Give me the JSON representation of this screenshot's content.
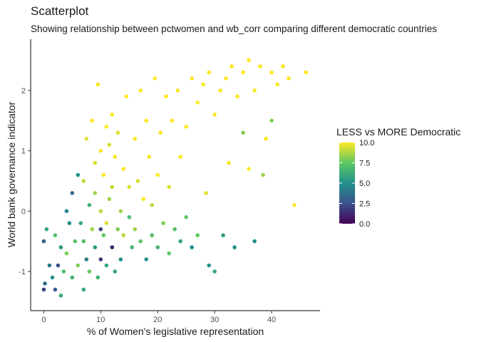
{
  "chart_data": {
    "type": "scatter",
    "title": "Scatterplot",
    "subtitle": "Showing relationship between pctwomen and wb_corr comparing different democratic countries",
    "xlabel": "% of Women's legislative representation",
    "ylabel": "World bank governance indicator",
    "xlim": [
      -2.3,
      48.5
    ],
    "ylim": [
      -1.65,
      2.85
    ],
    "x_ticks": [
      "0",
      "10",
      "20",
      "30",
      "40"
    ],
    "y_ticks": [
      "-1",
      "0",
      "1",
      "2"
    ],
    "x_tick_values": [
      0,
      10,
      20,
      30,
      40
    ],
    "y_tick_values": [
      -1,
      0,
      1,
      2
    ],
    "grid": false,
    "legend": {
      "title": "LESS vs MORE Democratic",
      "placement": "right",
      "ticks": [
        "0.0",
        "2.5",
        "5.0",
        "7.5",
        "10.0"
      ],
      "tick_values": [
        0,
        2.5,
        5,
        7.5,
        10
      ],
      "range": [
        0,
        10
      ],
      "colors": [
        "#440154",
        "#3B528B",
        "#21908C",
        "#5DC863",
        "#FDE725"
      ]
    },
    "points": [
      [
        0.0,
        -0.5,
        3.0
      ],
      [
        0.0,
        -1.3,
        2.0
      ],
      [
        0.2,
        -1.2,
        3.5
      ],
      [
        0.5,
        -0.3,
        6.0
      ],
      [
        1.0,
        -0.9,
        4.0
      ],
      [
        1.5,
        -1.1,
        5.0
      ],
      [
        2.0,
        -0.4,
        7.0
      ],
      [
        2.0,
        -1.3,
        3.0
      ],
      [
        2.5,
        -0.9,
        2.5
      ],
      [
        3.0,
        -1.4,
        6.0
      ],
      [
        3.0,
        -0.6,
        5.5
      ],
      [
        3.5,
        -1.0,
        7.0
      ],
      [
        4.0,
        0.0,
        4.5
      ],
      [
        4.0,
        -0.7,
        8.0
      ],
      [
        4.5,
        -0.2,
        5.0
      ],
      [
        5.0,
        -1.1,
        6.5
      ],
      [
        5.0,
        0.3,
        3.5
      ],
      [
        5.5,
        -0.5,
        7.5
      ],
      [
        6.0,
        -0.9,
        8.0
      ],
      [
        6.0,
        0.6,
        5.0
      ],
      [
        6.5,
        -0.2,
        6.0
      ],
      [
        7.0,
        -1.3,
        6.0
      ],
      [
        7.0,
        -0.5,
        7.0
      ],
      [
        7.0,
        0.5,
        9.0
      ],
      [
        7.5,
        1.2,
        9.5
      ],
      [
        7.5,
        -0.8,
        4.5
      ],
      [
        8.0,
        0.1,
        6.5
      ],
      [
        8.0,
        -1.0,
        7.5
      ],
      [
        8.5,
        1.5,
        10.0
      ],
      [
        8.5,
        -0.3,
        8.5
      ],
      [
        9.0,
        0.8,
        9.5
      ],
      [
        9.0,
        -0.6,
        5.5
      ],
      [
        9.0,
        0.3,
        8.5
      ],
      [
        9.5,
        -1.1,
        6.5
      ],
      [
        9.5,
        2.1,
        10.0
      ],
      [
        10.0,
        1.0,
        10.0
      ],
      [
        10.0,
        -0.8,
        1.5
      ],
      [
        10.0,
        0.0,
        9.0
      ],
      [
        10.0,
        -0.3,
        2.0
      ],
      [
        10.5,
        0.6,
        10.0
      ],
      [
        10.5,
        -0.4,
        7.5
      ],
      [
        11.0,
        1.4,
        10.0
      ],
      [
        11.0,
        -0.2,
        9.5
      ],
      [
        11.0,
        -0.9,
        6.0
      ],
      [
        11.5,
        0.2,
        8.5
      ],
      [
        11.5,
        1.1,
        9.5
      ],
      [
        12.0,
        1.6,
        10.0
      ],
      [
        12.0,
        -0.6,
        1.0
      ],
      [
        12.0,
        0.4,
        9.0
      ],
      [
        12.5,
        -1.0,
        6.0
      ],
      [
        12.5,
        0.9,
        10.0
      ],
      [
        13.0,
        -0.3,
        8.0
      ],
      [
        13.0,
        1.3,
        9.5
      ],
      [
        13.5,
        0.0,
        8.5
      ],
      [
        13.5,
        -0.8,
        5.0
      ],
      [
        14.0,
        0.7,
        10.0
      ],
      [
        14.0,
        -0.4,
        9.0
      ],
      [
        14.5,
        1.9,
        10.0
      ],
      [
        15.0,
        -0.1,
        7.0
      ],
      [
        15.0,
        0.4,
        9.5
      ],
      [
        15.5,
        -0.6,
        6.5
      ],
      [
        16.0,
        1.2,
        10.0
      ],
      [
        16.0,
        -0.3,
        8.5
      ],
      [
        16.5,
        0.5,
        9.5
      ],
      [
        17.0,
        2.0,
        10.0
      ],
      [
        17.0,
        -0.5,
        7.5
      ],
      [
        17.5,
        0.2,
        10.0
      ],
      [
        18.0,
        -0.8,
        5.0
      ],
      [
        18.0,
        1.5,
        10.0
      ],
      [
        18.5,
        0.9,
        10.0
      ],
      [
        19.0,
        -0.4,
        7.0
      ],
      [
        19.0,
        0.1,
        9.0
      ],
      [
        19.5,
        2.2,
        10.0
      ],
      [
        20.0,
        -0.6,
        6.5
      ],
      [
        20.0,
        0.6,
        10.0
      ],
      [
        20.5,
        1.3,
        10.0
      ],
      [
        21.0,
        -0.2,
        8.0
      ],
      [
        21.5,
        1.9,
        10.0
      ],
      [
        22.0,
        -0.7,
        7.5
      ],
      [
        22.0,
        0.4,
        9.5
      ],
      [
        22.5,
        1.5,
        10.0
      ],
      [
        23.0,
        -0.3,
        7.0
      ],
      [
        23.5,
        2.0,
        10.0
      ],
      [
        24.0,
        0.9,
        10.0
      ],
      [
        24.0,
        -0.5,
        6.0
      ],
      [
        25.0,
        1.4,
        10.0
      ],
      [
        25.0,
        -0.1,
        7.5
      ],
      [
        26.0,
        2.2,
        10.0
      ],
      [
        26.0,
        -0.6,
        5.0
      ],
      [
        27.0,
        1.8,
        10.0
      ],
      [
        27.0,
        -0.4,
        7.5
      ],
      [
        28.0,
        2.1,
        10.0
      ],
      [
        28.5,
        0.3,
        9.5
      ],
      [
        29.0,
        -0.9,
        5.0
      ],
      [
        29.0,
        2.3,
        10.0
      ],
      [
        30.0,
        -1.0,
        6.0
      ],
      [
        30.0,
        1.6,
        10.0
      ],
      [
        31.0,
        2.0,
        10.0
      ],
      [
        31.5,
        -0.4,
        5.5
      ],
      [
        32.0,
        2.2,
        10.0
      ],
      [
        32.5,
        0.8,
        10.0
      ],
      [
        33.0,
        2.4,
        10.0
      ],
      [
        33.5,
        -0.6,
        5.0
      ],
      [
        34.0,
        1.9,
        10.0
      ],
      [
        35.0,
        2.3,
        10.0
      ],
      [
        35.0,
        1.3,
        8.0
      ],
      [
        36.0,
        0.7,
        10.0
      ],
      [
        36.0,
        2.5,
        10.0
      ],
      [
        37.0,
        2.0,
        10.0
      ],
      [
        37.0,
        -0.5,
        5.0
      ],
      [
        38.0,
        2.4,
        10.0
      ],
      [
        38.5,
        0.6,
        8.5
      ],
      [
        39.0,
        1.2,
        10.0
      ],
      [
        40.0,
        2.3,
        10.0
      ],
      [
        40.0,
        1.5,
        8.0
      ],
      [
        41.0,
        2.1,
        10.0
      ],
      [
        42.0,
        2.4,
        10.0
      ],
      [
        43.0,
        2.2,
        10.0
      ],
      [
        44.0,
        0.1,
        10.0
      ],
      [
        46.0,
        2.3,
        10.0
      ]
    ]
  }
}
